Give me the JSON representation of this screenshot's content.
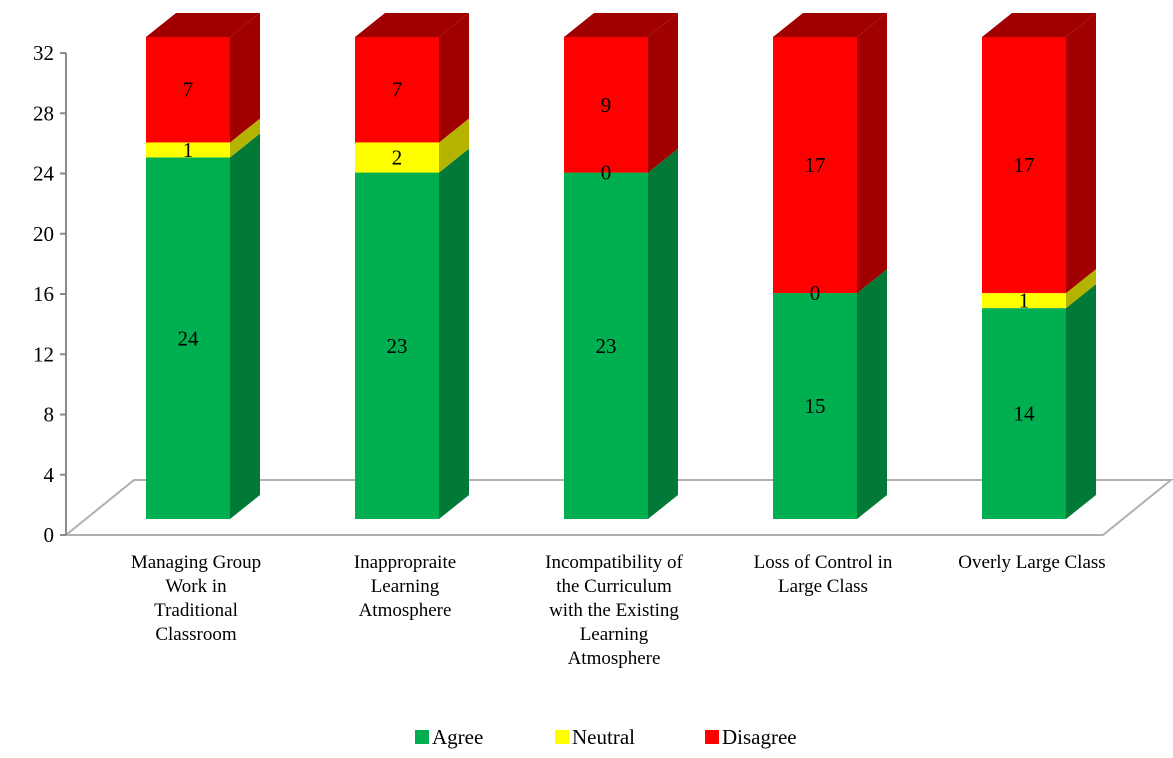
{
  "chart_data": {
    "type": "bar",
    "stacked": true,
    "three_d": true,
    "title": "",
    "xlabel": "",
    "ylabel": "",
    "ylim": [
      0,
      32
    ],
    "yticks": [
      0,
      4,
      8,
      12,
      16,
      20,
      24,
      28,
      32
    ],
    "grid": false,
    "legend_position": "bottom",
    "categories": [
      [
        "Managing Group",
        "Work in",
        "Traditional",
        "Classroom"
      ],
      [
        "Inappropraite",
        "Learning",
        "Atmosphere"
      ],
      [
        "Incompatibility of",
        "the Curriculum",
        "with the Existing",
        "Learning",
        "Atmosphere"
      ],
      [
        "Loss of Control in",
        "Large Class"
      ],
      [
        "Overly Large Class"
      ]
    ],
    "series": [
      {
        "name": "Agree",
        "color": "#00b050",
        "side_color": "#007a36",
        "values": [
          24,
          23,
          23,
          15,
          14
        ]
      },
      {
        "name": "Neutral",
        "color": "#ffff00",
        "side_color": "#b3b300",
        "values": [
          1,
          2,
          0,
          0,
          1
        ]
      },
      {
        "name": "Disagree",
        "color": "#ff0000",
        "side_color": "#a00000",
        "values": [
          7,
          7,
          9,
          17,
          17
        ]
      }
    ]
  }
}
